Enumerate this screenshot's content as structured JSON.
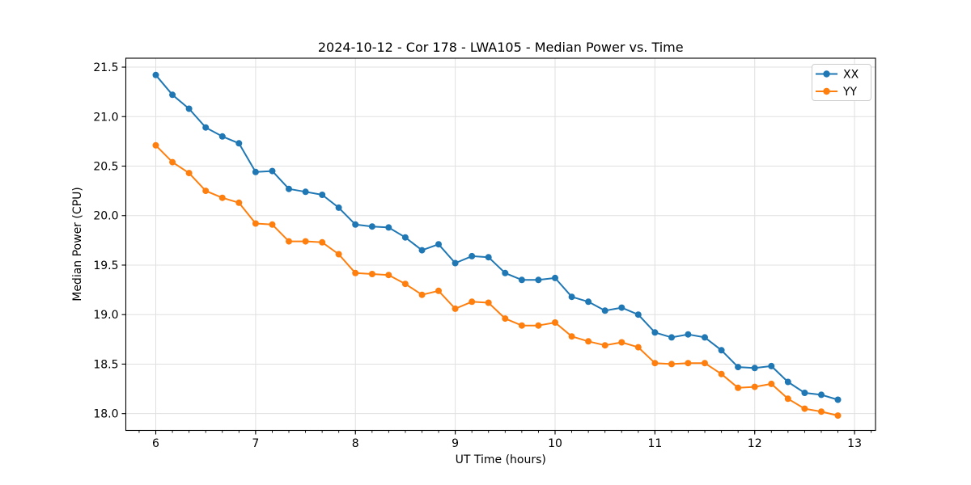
{
  "chart_data": {
    "type": "line",
    "title": "2024-10-12 - Cor 178 - LWA105 - Median Power vs. Time",
    "xlabel": "UT Time (hours)",
    "ylabel": "Median Power (CPU)",
    "xlim": [
      5.7,
      13.21
    ],
    "ylim": [
      17.83,
      21.59
    ],
    "x_major_ticks": [
      6,
      7,
      8,
      9,
      10,
      11,
      12,
      13
    ],
    "x_tick_labels": [
      "6",
      "7",
      "8",
      "9",
      "10",
      "11",
      "12",
      "13"
    ],
    "x_minor_tick_step": 0.166667,
    "y_major_ticks": [
      18.0,
      18.5,
      19.0,
      19.5,
      20.0,
      20.5,
      21.0,
      21.5
    ],
    "y_tick_labels": [
      "18.0",
      "18.5",
      "19.0",
      "19.5",
      "20.0",
      "20.5",
      "21.0",
      "21.5"
    ],
    "grid": {
      "which": "major",
      "axis": "both",
      "color": "#e0e0e0"
    },
    "legend": {
      "position": "upper-right",
      "border_color": "#cccccc"
    },
    "x": [
      6.0,
      6.167,
      6.333,
      6.5,
      6.667,
      6.833,
      7.0,
      7.167,
      7.333,
      7.5,
      7.667,
      7.833,
      8.0,
      8.167,
      8.333,
      8.5,
      8.667,
      8.833,
      9.0,
      9.167,
      9.333,
      9.5,
      9.667,
      9.833,
      10.0,
      10.167,
      10.333,
      10.5,
      10.667,
      10.833,
      11.0,
      11.167,
      11.333,
      11.5,
      11.667,
      11.833,
      12.0,
      12.167,
      12.333,
      12.5,
      12.667,
      12.833
    ],
    "series": [
      {
        "name": "XX",
        "color": "#1f77b4",
        "values": [
          21.42,
          21.22,
          21.08,
          20.89,
          20.8,
          20.73,
          20.44,
          20.45,
          20.27,
          20.24,
          20.21,
          20.08,
          19.91,
          19.89,
          19.88,
          19.78,
          19.65,
          19.71,
          19.52,
          19.59,
          19.58,
          19.42,
          19.35,
          19.35,
          19.37,
          19.18,
          19.13,
          19.04,
          19.07,
          19.0,
          18.82,
          18.77,
          18.8,
          18.77,
          18.64,
          18.47,
          18.46,
          18.48,
          18.32,
          18.21,
          18.19,
          18.14
        ]
      },
      {
        "name": "YY",
        "color": "#ff7f0e",
        "values": [
          20.71,
          20.54,
          20.43,
          20.25,
          20.18,
          20.13,
          19.92,
          19.91,
          19.74,
          19.74,
          19.73,
          19.61,
          19.42,
          19.41,
          19.4,
          19.31,
          19.2,
          19.24,
          19.06,
          19.13,
          19.12,
          18.96,
          18.89,
          18.89,
          18.92,
          18.78,
          18.73,
          18.69,
          18.72,
          18.67,
          18.51,
          18.5,
          18.51,
          18.51,
          18.4,
          18.26,
          18.27,
          18.3,
          18.15,
          18.05,
          18.02,
          17.98
        ]
      }
    ]
  }
}
